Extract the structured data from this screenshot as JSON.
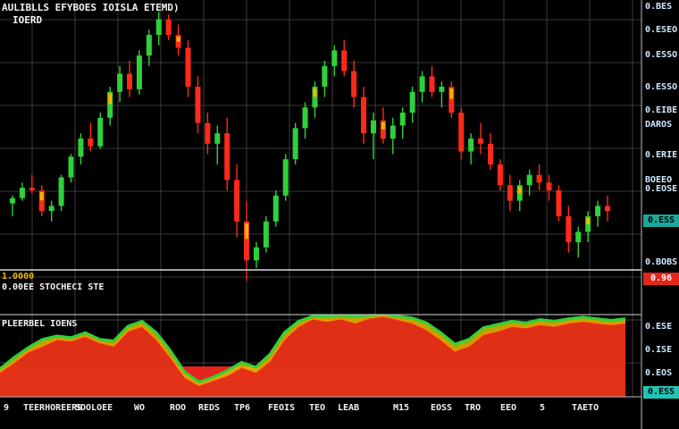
{
  "header": {
    "title": "AULIBLLS EFYBOES IOISLA ETEMD)",
    "subtitle": "IOERD"
  },
  "price_axis": {
    "labels": [
      "0.BES",
      "0.ESEO",
      "0.ESSO",
      "0.ESSO",
      "0.EIBE",
      "DAROS",
      "0.ERIE",
      "BOEEO",
      "0.EOSE",
      "0.BOBS"
    ],
    "green_box": "0.ESS",
    "red_box": "0.96"
  },
  "indicator_axis": {
    "labels": [
      "0.ESE",
      "0.ISE",
      "0.EOS"
    ],
    "teal_box": "0.ESS"
  },
  "panel_labels": {
    "main_lower_1": "1.0000",
    "main_lower_2": "0.00EE STOCHECI STE",
    "indicator_title": "PLEERBEL IOENS"
  },
  "time_axis": [
    "9",
    "TEERHOREERS",
    "SOOLOEE",
    "WO",
    "ROO",
    "REDS",
    "TP6",
    "FEOIS",
    "TEO",
    "LEAB",
    "M15",
    "EOSS",
    "TRO",
    "EEO",
    "5",
    "TAETO"
  ],
  "colors": {
    "bull": "#2fd13a",
    "bear": "#ff2a1a",
    "amber": "#f0b400",
    "grid": "#4a4a4a",
    "teal": "#1ec6b6",
    "red_box": "#e5241b"
  },
  "chart_data": {
    "type": "candlestick",
    "candles": [
      [
        0.25,
        0.28,
        0.2,
        0.27
      ],
      [
        0.27,
        0.33,
        0.26,
        0.31
      ],
      [
        0.31,
        0.36,
        0.29,
        0.3
      ],
      [
        0.3,
        0.32,
        0.2,
        0.22
      ],
      [
        0.22,
        0.26,
        0.18,
        0.24
      ],
      [
        0.24,
        0.36,
        0.22,
        0.35
      ],
      [
        0.35,
        0.44,
        0.33,
        0.43
      ],
      [
        0.43,
        0.52,
        0.4,
        0.5
      ],
      [
        0.5,
        0.56,
        0.45,
        0.47
      ],
      [
        0.47,
        0.6,
        0.46,
        0.58
      ],
      [
        0.58,
        0.7,
        0.55,
        0.68
      ],
      [
        0.68,
        0.78,
        0.64,
        0.75
      ],
      [
        0.75,
        0.8,
        0.66,
        0.69
      ],
      [
        0.69,
        0.84,
        0.67,
        0.82
      ],
      [
        0.82,
        0.92,
        0.78,
        0.9
      ],
      [
        0.9,
        0.99,
        0.86,
        0.96
      ],
      [
        0.96,
        0.98,
        0.88,
        0.9
      ],
      [
        0.9,
        0.94,
        0.82,
        0.85
      ],
      [
        0.85,
        0.88,
        0.66,
        0.7
      ],
      [
        0.7,
        0.74,
        0.52,
        0.56
      ],
      [
        0.56,
        0.6,
        0.44,
        0.48
      ],
      [
        0.48,
        0.55,
        0.4,
        0.52
      ],
      [
        0.52,
        0.58,
        0.3,
        0.34
      ],
      [
        0.34,
        0.4,
        0.12,
        0.18
      ],
      [
        0.18,
        0.26,
        -0.05,
        0.03
      ],
      [
        0.03,
        0.1,
        0.0,
        0.08
      ],
      [
        0.08,
        0.2,
        0.06,
        0.18
      ],
      [
        0.18,
        0.3,
        0.16,
        0.28
      ],
      [
        0.28,
        0.44,
        0.26,
        0.42
      ],
      [
        0.42,
        0.56,
        0.4,
        0.54
      ],
      [
        0.54,
        0.64,
        0.5,
        0.62
      ],
      [
        0.62,
        0.72,
        0.58,
        0.7
      ],
      [
        0.7,
        0.8,
        0.66,
        0.78
      ],
      [
        0.78,
        0.86,
        0.74,
        0.84
      ],
      [
        0.84,
        0.88,
        0.74,
        0.76
      ],
      [
        0.76,
        0.8,
        0.62,
        0.66
      ],
      [
        0.66,
        0.7,
        0.48,
        0.52
      ],
      [
        0.52,
        0.6,
        0.42,
        0.57
      ],
      [
        0.57,
        0.62,
        0.48,
        0.5
      ],
      [
        0.5,
        0.58,
        0.44,
        0.55
      ],
      [
        0.55,
        0.62,
        0.5,
        0.6
      ],
      [
        0.6,
        0.7,
        0.56,
        0.68
      ],
      [
        0.68,
        0.76,
        0.64,
        0.74
      ],
      [
        0.74,
        0.78,
        0.66,
        0.68
      ],
      [
        0.68,
        0.72,
        0.62,
        0.7
      ],
      [
        0.7,
        0.72,
        0.58,
        0.6
      ],
      [
        0.6,
        0.62,
        0.42,
        0.45
      ],
      [
        0.45,
        0.52,
        0.4,
        0.5
      ],
      [
        0.5,
        0.56,
        0.44,
        0.48
      ],
      [
        0.48,
        0.52,
        0.38,
        0.4
      ],
      [
        0.4,
        0.42,
        0.3,
        0.32
      ],
      [
        0.32,
        0.36,
        0.22,
        0.26
      ],
      [
        0.26,
        0.34,
        0.22,
        0.32
      ],
      [
        0.32,
        0.38,
        0.28,
        0.36
      ],
      [
        0.36,
        0.4,
        0.3,
        0.33
      ],
      [
        0.33,
        0.36,
        0.26,
        0.3
      ],
      [
        0.3,
        0.32,
        0.18,
        0.2
      ],
      [
        0.2,
        0.24,
        0.06,
        0.1
      ],
      [
        0.1,
        0.16,
        0.04,
        0.14
      ],
      [
        0.14,
        0.22,
        0.1,
        0.2
      ],
      [
        0.2,
        0.26,
        0.16,
        0.24
      ],
      [
        0.24,
        0.28,
        0.18,
        0.22
      ]
    ],
    "indicator": {
      "lower": [
        0.3,
        0.42,
        0.55,
        0.62,
        0.7,
        0.68,
        0.74,
        0.66,
        0.62,
        0.8,
        0.86,
        0.7,
        0.48,
        0.24,
        0.14,
        0.2,
        0.26,
        0.36,
        0.3,
        0.44,
        0.7,
        0.86,
        0.95,
        0.92,
        0.95,
        0.9,
        0.96,
        0.98,
        0.94,
        0.9,
        0.82,
        0.7,
        0.56,
        0.62,
        0.76,
        0.8,
        0.86,
        0.84,
        0.88,
        0.86,
        0.9,
        0.92,
        0.9,
        0.88,
        0.9
      ],
      "upper": [
        0.34,
        0.48,
        0.6,
        0.7,
        0.74,
        0.72,
        0.78,
        0.7,
        0.68,
        0.86,
        0.92,
        0.78,
        0.56,
        0.3,
        0.18,
        0.24,
        0.32,
        0.42,
        0.36,
        0.52,
        0.78,
        0.92,
        0.98,
        0.98,
        0.99,
        0.98,
        0.99,
        0.99,
        0.98,
        0.96,
        0.9,
        0.78,
        0.64,
        0.7,
        0.84,
        0.88,
        0.92,
        0.9,
        0.94,
        0.92,
        0.95,
        0.97,
        0.95,
        0.93,
        0.95
      ]
    }
  }
}
